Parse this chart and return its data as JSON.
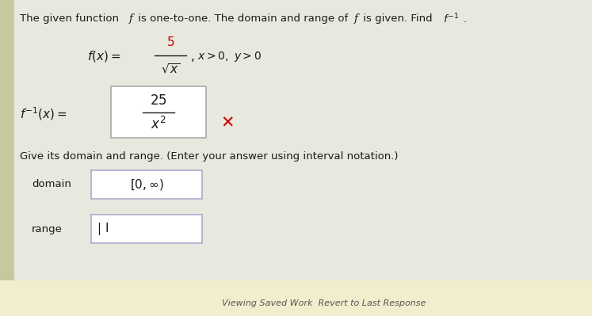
{
  "bg_color": "#e8e8de",
  "white_bg": "#ffffff",
  "header_text": "The given function ",
  "header_f": "f",
  "header_text2": " is one-to-one. The domain and range of ",
  "header_f2": "f",
  "header_text3": " is given. Find  ",
  "header_finv": "f",
  "fx_numerator_color": "#cc0000",
  "cross_color": "#cc0000",
  "domain_value": "[0,∞)",
  "range_cursor": "| I",
  "footer_text": "Viewing Saved Work  Revert to Last Response",
  "footer_bg": "#f0eecc",
  "box_border": "#aaaacc",
  "text_color": "#1a1a1a",
  "left_bar_color": "#c8c8a0"
}
